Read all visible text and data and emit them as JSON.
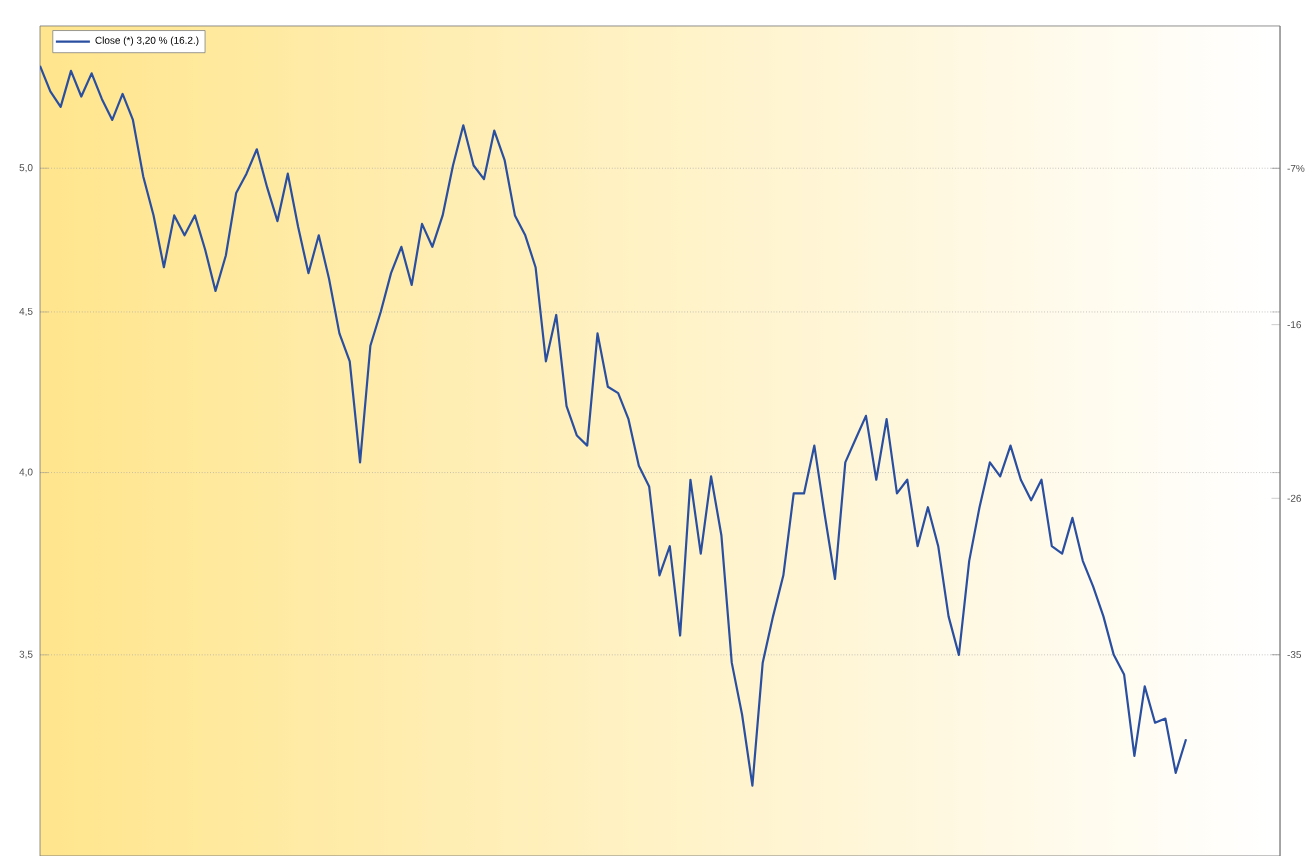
{
  "chart_data": {
    "type": "line",
    "categories": [
      null,
      null,
      null,
      null,
      null,
      null,
      null,
      null,
      null,
      null,
      null,
      null,
      null,
      null,
      null,
      null,
      null,
      null,
      null,
      null,
      null,
      null,
      null,
      null,
      null,
      null,
      null,
      null,
      null,
      null,
      null,
      null,
      null,
      null,
      null,
      null,
      null,
      null,
      null,
      null,
      null,
      null,
      null,
      null,
      null,
      null,
      null,
      null,
      null,
      null,
      null,
      null,
      null,
      null,
      null,
      null,
      null,
      null,
      null,
      null,
      null,
      null,
      null,
      null,
      null,
      null,
      null,
      null,
      null,
      null,
      null,
      null,
      null,
      null,
      null,
      null,
      null,
      null,
      null,
      null,
      null,
      null,
      null,
      null,
      null,
      null,
      null,
      null,
      null,
      null,
      null,
      null,
      null,
      null,
      null,
      null,
      null,
      null,
      null,
      null,
      null,
      null,
      null,
      null,
      null,
      null,
      null,
      null,
      null,
      null,
      null,
      null
    ],
    "series": [
      {
        "name": "Close (*) 3,20 % (16.2.)",
        "color": "#2a4fa0",
        "values": [
          5.39,
          5.29,
          5.23,
          5.37,
          5.27,
          5.36,
          5.26,
          5.18,
          5.28,
          5.18,
          4.97,
          4.83,
          4.65,
          4.83,
          4.76,
          4.83,
          4.71,
          4.57,
          4.69,
          4.91,
          4.98,
          5.07,
          4.93,
          4.81,
          4.98,
          4.79,
          4.63,
          4.76,
          4.61,
          4.43,
          4.34,
          4.03,
          4.39,
          4.5,
          4.63,
          4.72,
          4.59,
          4.8,
          4.72,
          4.83,
          5.01,
          5.16,
          5.01,
          4.96,
          5.14,
          5.03,
          4.83,
          4.76,
          4.65,
          4.34,
          4.49,
          4.2,
          4.11,
          4.08,
          4.43,
          4.26,
          4.24,
          4.16,
          4.02,
          3.96,
          3.71,
          3.79,
          3.55,
          3.98,
          3.77,
          3.99,
          3.82,
          3.48,
          3.35,
          3.18,
          3.48,
          3.6,
          3.71,
          3.94,
          3.94,
          4.08,
          3.88,
          3.7,
          4.03,
          4.1,
          4.17,
          3.98,
          4.16,
          3.94,
          3.98,
          3.79,
          3.9,
          3.79,
          3.6,
          3.5,
          3.75,
          3.9,
          4.03,
          3.99,
          4.08,
          3.98,
          3.92,
          3.98,
          3.79,
          3.77,
          3.87,
          3.75,
          3.68,
          3.6,
          3.5,
          3.45,
          3.25,
          3.42,
          3.33,
          3.34,
          3.21,
          3.29
        ]
      }
    ],
    "ylim": [
      3.02,
      5.55
    ],
    "yticks": [
      {
        "value": 3.5,
        "label": "3,5"
      },
      {
        "value": 4.0,
        "label": "4,0"
      },
      {
        "value": 4.5,
        "label": "4,5"
      },
      {
        "value": 5.0,
        "label": "5,0"
      }
    ],
    "y2lim": [
      -46.6,
      1.2
    ],
    "y2ticks": [
      -35,
      -26,
      -16,
      {
        "value": -7,
        "label": "-7%"
      }
    ],
    "log": "y",
    "grid": "y",
    "legend": "top left",
    "tick_labels": "y"
  }
}
